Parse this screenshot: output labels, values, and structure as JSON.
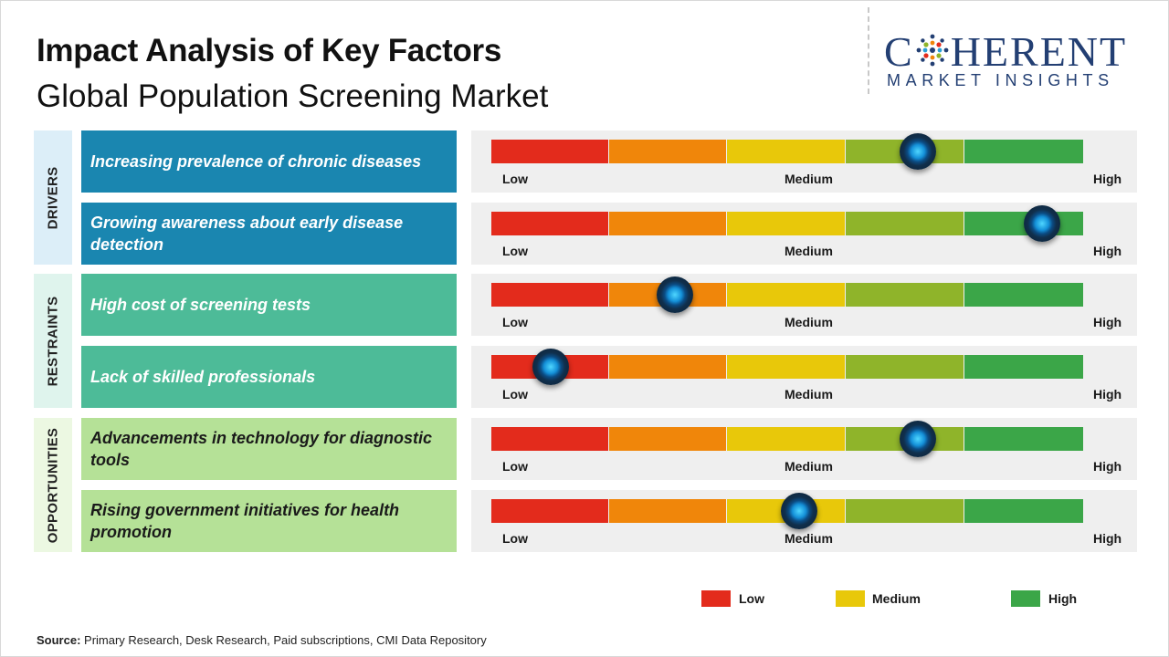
{
  "header": {
    "title": "Impact Analysis of Key Factors",
    "subtitle": "Global Population Screening Market"
  },
  "logo": {
    "top_prefix": "C",
    "top_suffix": "HERENT",
    "bottom": "MARKET INSIGHTS"
  },
  "colors": {
    "segments": [
      "#e32b1c",
      "#f0860a",
      "#e8c80a",
      "#8fb42a",
      "#3ba648"
    ],
    "drivers": "#1a86b0",
    "restraints": "#4dbb98",
    "opportunities": "#b5e197",
    "drivers_label_bg": "#dceef8",
    "restraints_label_bg": "#dff4ed",
    "opportunities_label_bg": "#ecf8e2"
  },
  "chart_data": {
    "type": "bar",
    "title": "Impact Analysis of Key Factors",
    "subtitle": "Global Population Screening Market",
    "scale": {
      "min": 0,
      "max": 1,
      "labels": [
        "Low",
        "Medium",
        "High"
      ]
    },
    "groups": [
      {
        "name": "DRIVERS",
        "factors": [
          {
            "label": "Increasing prevalence of chronic diseases",
            "value": 0.72
          },
          {
            "label": "Growing awareness about early disease detection",
            "value": 0.93
          }
        ]
      },
      {
        "name": "RESTRAINTS",
        "factors": [
          {
            "label": "High cost of screening tests",
            "value": 0.31
          },
          {
            "label": "Lack of skilled professionals",
            "value": 0.1
          }
        ]
      },
      {
        "name": "OPPORTUNITIES",
        "factors": [
          {
            "label": "Advancements in technology for diagnostic tools",
            "value": 0.72
          },
          {
            "label": "Rising government initiatives for health promotion",
            "value": 0.52
          }
        ]
      }
    ],
    "legend": [
      "Low",
      "Medium",
      "High"
    ]
  },
  "source": {
    "label": "Source:",
    "text": "Primary Research, Desk Research, Paid subscriptions, CMI Data Repository"
  }
}
